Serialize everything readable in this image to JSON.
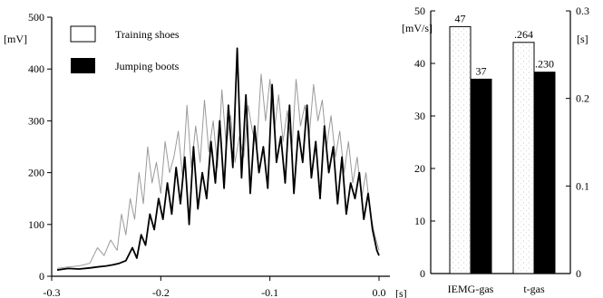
{
  "chart_data": [
    {
      "type": "line",
      "title": "",
      "xlabel": "[s]",
      "ylabel": "[mV]",
      "xlim": [
        -0.3,
        0.0
      ],
      "ylim": [
        0,
        500
      ],
      "xticks": [
        -0.3,
        -0.2,
        -0.1,
        0.0
      ],
      "xtick_labels": [
        "-0.3",
        "-0.2",
        "-0.1",
        "0.0"
      ],
      "yticks": [
        0,
        100,
        200,
        300,
        400,
        500
      ],
      "ytick_labels": [
        "0",
        "100",
        "200",
        "300",
        "400",
        "500"
      ],
      "grid": false,
      "legend_position": "top-left",
      "series": [
        {
          "name": "Training shoes",
          "color": "#9a9a9a",
          "x": [
            -0.295,
            -0.285,
            -0.275,
            -0.265,
            -0.258,
            -0.252,
            -0.246,
            -0.24,
            -0.236,
            -0.232,
            -0.228,
            -0.224,
            -0.22,
            -0.216,
            -0.212,
            -0.208,
            -0.204,
            -0.2,
            -0.196,
            -0.192,
            -0.188,
            -0.184,
            -0.18,
            -0.176,
            -0.172,
            -0.168,
            -0.164,
            -0.16,
            -0.156,
            -0.152,
            -0.148,
            -0.144,
            -0.14,
            -0.136,
            -0.132,
            -0.128,
            -0.124,
            -0.12,
            -0.116,
            -0.112,
            -0.108,
            -0.104,
            -0.1,
            -0.096,
            -0.092,
            -0.088,
            -0.084,
            -0.08,
            -0.076,
            -0.072,
            -0.068,
            -0.064,
            -0.06,
            -0.056,
            -0.052,
            -0.048,
            -0.044,
            -0.04,
            -0.036,
            -0.032,
            -0.028,
            -0.024,
            -0.02,
            -0.016,
            -0.012,
            -0.008,
            -0.004,
            0.0
          ],
          "y": [
            15,
            18,
            20,
            25,
            55,
            40,
            70,
            50,
            120,
            80,
            150,
            110,
            200,
            140,
            250,
            180,
            220,
            160,
            260,
            200,
            230,
            280,
            190,
            330,
            210,
            290,
            220,
            340,
            240,
            300,
            210,
            360,
            250,
            310,
            220,
            270,
            230,
            330,
            280,
            250,
            390,
            300,
            380,
            280,
            350,
            260,
            320,
            240,
            380,
            290,
            330,
            270,
            370,
            300,
            340,
            250,
            310,
            230,
            280,
            200,
            260,
            180,
            230,
            150,
            200,
            120,
            80,
            50
          ]
        },
        {
          "name": "Jumping boots",
          "color": "#000000",
          "x": [
            -0.295,
            -0.285,
            -0.275,
            -0.265,
            -0.258,
            -0.25,
            -0.244,
            -0.238,
            -0.232,
            -0.226,
            -0.222,
            -0.218,
            -0.214,
            -0.21,
            -0.206,
            -0.202,
            -0.198,
            -0.194,
            -0.19,
            -0.186,
            -0.182,
            -0.178,
            -0.174,
            -0.17,
            -0.166,
            -0.162,
            -0.158,
            -0.154,
            -0.15,
            -0.146,
            -0.142,
            -0.138,
            -0.134,
            -0.13,
            -0.126,
            -0.122,
            -0.118,
            -0.114,
            -0.11,
            -0.106,
            -0.102,
            -0.098,
            -0.094,
            -0.09,
            -0.086,
            -0.082,
            -0.078,
            -0.074,
            -0.07,
            -0.066,
            -0.062,
            -0.058,
            -0.054,
            -0.05,
            -0.046,
            -0.042,
            -0.038,
            -0.034,
            -0.03,
            -0.026,
            -0.022,
            -0.018,
            -0.014,
            -0.01,
            -0.006,
            -0.002,
            0.0
          ],
          "y": [
            12,
            15,
            14,
            16,
            18,
            20,
            22,
            25,
            30,
            55,
            35,
            80,
            60,
            120,
            90,
            150,
            110,
            180,
            120,
            210,
            140,
            230,
            100,
            250,
            130,
            200,
            150,
            260,
            180,
            300,
            170,
            330,
            210,
            440,
            190,
            350,
            160,
            290,
            200,
            250,
            170,
            370,
            220,
            270,
            180,
            330,
            160,
            280,
            220,
            330,
            190,
            260,
            150,
            290,
            200,
            250,
            140,
            230,
            120,
            180,
            150,
            200,
            110,
            160,
            90,
            50,
            40
          ]
        }
      ]
    },
    {
      "type": "bar",
      "title": "",
      "categories": [
        "IEMG-gas",
        "t-gas"
      ],
      "left_axis": {
        "label": "[mV/s]",
        "ylim": [
          0,
          50
        ],
        "ticks": [
          0,
          10,
          20,
          30,
          40,
          50
        ],
        "tick_labels": [
          "0",
          "10",
          "20",
          "30",
          "40",
          "50"
        ]
      },
      "right_axis": {
        "label": "[s]",
        "ylim": [
          0,
          0.3
        ],
        "ticks": [
          0,
          0.1,
          0.2,
          0.3
        ],
        "tick_labels": [
          "0",
          "0.1",
          "0.2",
          "0.3"
        ]
      },
      "grid": false,
      "series": [
        {
          "name": "Training shoes",
          "color": "#ffffff",
          "values": [
            47,
            0.264
          ],
          "axes": [
            "left",
            "right"
          ],
          "labels": [
            "47",
            ".264"
          ]
        },
        {
          "name": "Jumping boots",
          "color": "#000000",
          "values": [
            37,
            0.23
          ],
          "axes": [
            "left",
            "right"
          ],
          "labels": [
            "37",
            ".230"
          ]
        }
      ]
    }
  ]
}
